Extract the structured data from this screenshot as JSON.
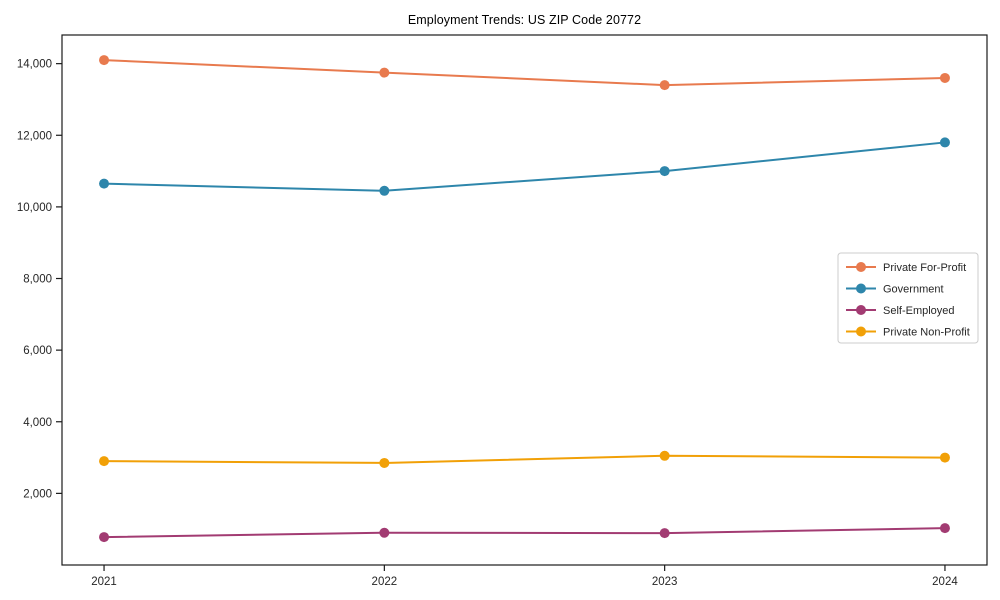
{
  "chart_data": {
    "type": "line",
    "title": "Employment Trends: US ZIP Code 20772",
    "x": [
      2021,
      2022,
      2023,
      2024
    ],
    "x_tick_labels": [
      "2021",
      "2022",
      "2023",
      "2024"
    ],
    "series": [
      {
        "name": "Private For-Profit",
        "color": "#E87A4E",
        "values": [
          14100,
          13750,
          13400,
          13600
        ]
      },
      {
        "name": "Government",
        "color": "#2E86AB",
        "values": [
          10650,
          10450,
          11000,
          11800
        ]
      },
      {
        "name": "Self-Employed",
        "color": "#A23B72",
        "values": [
          780,
          900,
          890,
          1030
        ]
      },
      {
        "name": "Private Non-Profit",
        "color": "#F1A007",
        "values": [
          2900,
          2850,
          3050,
          3000
        ]
      }
    ],
    "ylim": [
      0,
      14800
    ],
    "yticks": [
      2000,
      4000,
      6000,
      8000,
      10000,
      12000,
      14000
    ],
    "y_tick_labels": [
      "2,000",
      "4,000",
      "6,000",
      "8,000",
      "10,000",
      "12,000",
      "14,000"
    ],
    "xlabel": "",
    "ylabel": "",
    "grid": false,
    "legend": {
      "position": "right-middle",
      "entries": [
        "Private For-Profit",
        "Government",
        "Self-Employed",
        "Private Non-Profit"
      ]
    },
    "axis_color": "#1a1a1a",
    "legend_border_color": "#cccccc",
    "background": "#ffffff",
    "marker": "circle",
    "line_width": 2
  }
}
